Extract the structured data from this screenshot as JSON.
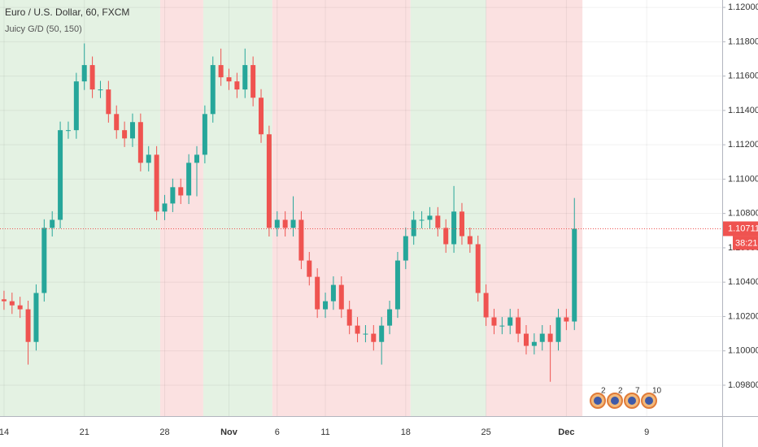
{
  "chart_data": {
    "type": "candlestick",
    "title": "Euro / U.S. Dollar, 60, FXCM",
    "subtitle": "Juicy G/D (50, 150)",
    "up_color": "#26a69a",
    "down_color": "#ef5350",
    "xlim": [
      -0.25,
      44.7
    ],
    "ylim": [
      1.0962,
      1.12043
    ],
    "xticks": [
      {
        "value": 0,
        "label": "14"
      },
      {
        "value": 5,
        "label": "21"
      },
      {
        "value": 10,
        "label": "28"
      },
      {
        "value": 14,
        "label": "Nov"
      },
      {
        "value": 17,
        "label": "6"
      },
      {
        "value": 20,
        "label": "11"
      },
      {
        "value": 25,
        "label": "18"
      },
      {
        "value": 30,
        "label": "25"
      },
      {
        "value": 35,
        "label": "Dec"
      },
      {
        "value": 40,
        "label": "9"
      }
    ],
    "yticks": [
      {
        "value": 1.098,
        "label": "1.09800"
      },
      {
        "value": 1.1,
        "label": "1.10000"
      },
      {
        "value": 1.102,
        "label": "1.10200"
      },
      {
        "value": 1.104,
        "label": "1.10400"
      },
      {
        "value": 1.106,
        "label": "1.10600"
      },
      {
        "value": 1.108,
        "label": "1.10800"
      },
      {
        "value": 1.11,
        "label": "1.11000"
      },
      {
        "value": 1.112,
        "label": "1.11200"
      },
      {
        "value": 1.114,
        "label": "1.11400"
      },
      {
        "value": 1.116,
        "label": "1.11600"
      },
      {
        "value": 1.118,
        "label": "1.11800"
      },
      {
        "value": 1.12,
        "label": "1.12000"
      }
    ],
    "grid": true,
    "zones": [
      {
        "start": -0.25,
        "end": 9.72,
        "color": "#e4f2e3"
      },
      {
        "start": 9.72,
        "end": 12.4,
        "color": "#fbe1e1"
      },
      {
        "start": 12.4,
        "end": 16.7,
        "color": "#e4f2e3"
      },
      {
        "start": 16.7,
        "end": 25.3,
        "color": "#fbe1e1"
      },
      {
        "start": 25.3,
        "end": 30.0,
        "color": "#e4f2e3"
      },
      {
        "start": 30.0,
        "end": 36.0,
        "color": "#fbe1e1"
      }
    ],
    "x": [
      0,
      0.5,
      1,
      1.5,
      2,
      2.5,
      3,
      3.5,
      4,
      4.5,
      5,
      5.5,
      6,
      6.5,
      7,
      7.5,
      8,
      8.5,
      9,
      9.5,
      10,
      10.5,
      11,
      11.5,
      12,
      12.5,
      13,
      13.5,
      14,
      14.5,
      15,
      15.5,
      16,
      16.5,
      17,
      17.5,
      18,
      18.5,
      19,
      19.5,
      20,
      20.5,
      21,
      21.5,
      22,
      22.5,
      23,
      23.5,
      24,
      24.5,
      25,
      25.5,
      26,
      26.5,
      27,
      27.5,
      28,
      28.5,
      29,
      29.5,
      30,
      30.5,
      31,
      31.5,
      32,
      32.5,
      33,
      33.5,
      34,
      34.5,
      35,
      35.5
    ],
    "open": [
      1.103,
      1.10289,
      1.10265,
      1.10242,
      1.10052,
      1.10337,
      1.10716,
      1.10763,
      1.11285,
      1.11285,
      1.11569,
      1.11664,
      1.11522,
      1.11522,
      1.11379,
      1.11285,
      1.11237,
      1.11332,
      1.11095,
      1.11142,
      1.10811,
      1.10858,
      1.10953,
      1.10905,
      1.11095,
      1.11142,
      1.11379,
      1.11664,
      1.11593,
      1.11569,
      1.11522,
      1.11664,
      1.11474,
      1.11261,
      1.10716,
      1.10763,
      1.10716,
      1.10763,
      1.10526,
      1.10431,
      1.10242,
      1.10289,
      1.10384,
      1.10242,
      1.10147,
      1.101,
      1.101,
      1.10052,
      1.10147,
      1.10242,
      1.10526,
      1.10668,
      1.10763,
      1.10763,
      1.10787,
      1.10716,
      1.10621,
      1.10811,
      1.10668,
      1.10621,
      1.10337,
      1.10195,
      1.10147,
      1.10147,
      1.10195,
      1.101,
      1.10029,
      1.10052,
      1.101,
      1.10052,
      1.10195,
      1.10171
    ],
    "high": [
      1.1035,
      1.10339,
      1.10315,
      1.10292,
      1.10387,
      1.10766,
      1.10813,
      1.11335,
      1.11335,
      1.11619,
      1.1179,
      1.11714,
      1.11572,
      1.11572,
      1.11429,
      1.11335,
      1.11382,
      1.11382,
      1.11192,
      1.11192,
      1.10908,
      1.11003,
      1.11003,
      1.11145,
      1.11192,
      1.11429,
      1.11714,
      1.1176,
      1.11643,
      1.11619,
      1.1176,
      1.11714,
      1.11524,
      1.11311,
      1.10813,
      1.10813,
      1.109,
      1.10813,
      1.10576,
      1.10481,
      1.10339,
      1.10434,
      1.10434,
      1.10292,
      1.10197,
      1.1015,
      1.1015,
      1.10197,
      1.10292,
      1.10576,
      1.10718,
      1.10813,
      1.10813,
      1.10837,
      1.10837,
      1.10766,
      1.1096,
      1.10861,
      1.10718,
      1.10671,
      1.10387,
      1.10245,
      1.10197,
      1.10245,
      1.10245,
      1.1015,
      1.10102,
      1.1015,
      1.1015,
      1.10245,
      1.10245,
      1.1089
    ],
    "low": [
      1.10239,
      1.10215,
      1.10192,
      1.0992,
      1.10002,
      1.10287,
      1.10666,
      1.10713,
      1.11235,
      1.11235,
      1.11519,
      1.11472,
      1.11472,
      1.11329,
      1.11235,
      1.11187,
      1.11187,
      1.11045,
      1.11045,
      1.10761,
      1.10761,
      1.10808,
      1.10855,
      1.10855,
      1.109,
      1.11092,
      1.11329,
      1.11543,
      1.11519,
      1.11472,
      1.11472,
      1.11424,
      1.11211,
      1.10666,
      1.10666,
      1.10666,
      1.10666,
      1.10476,
      1.10381,
      1.10192,
      1.10192,
      1.10239,
      1.10192,
      1.10097,
      1.1005,
      1.1005,
      1.10002,
      1.0992,
      1.10097,
      1.10192,
      1.10476,
      1.10618,
      1.10713,
      1.10713,
      1.10666,
      1.10571,
      1.10571,
      1.10618,
      1.10571,
      1.10287,
      1.10145,
      1.10097,
      1.10097,
      1.10097,
      1.1005,
      1.09979,
      1.09979,
      1.10002,
      1.0982,
      1.10002,
      1.10121,
      1.10121
    ],
    "close": [
      1.10289,
      1.10265,
      1.10242,
      1.10052,
      1.10337,
      1.10716,
      1.10763,
      1.11285,
      1.11285,
      1.11569,
      1.11664,
      1.11522,
      1.11522,
      1.11379,
      1.11285,
      1.11237,
      1.11332,
      1.11095,
      1.11142,
      1.10811,
      1.10858,
      1.10953,
      1.10905,
      1.11095,
      1.11142,
      1.11379,
      1.11664,
      1.11593,
      1.11569,
      1.11522,
      1.11664,
      1.11474,
      1.11261,
      1.10716,
      1.10763,
      1.10716,
      1.10763,
      1.10526,
      1.10431,
      1.10242,
      1.10289,
      1.10384,
      1.10242,
      1.10147,
      1.101,
      1.101,
      1.10052,
      1.10147,
      1.10242,
      1.10526,
      1.10668,
      1.10763,
      1.10763,
      1.10787,
      1.10716,
      1.10621,
      1.10811,
      1.10668,
      1.10621,
      1.10337,
      1.10195,
      1.10147,
      1.10147,
      1.10195,
      1.101,
      1.10029,
      1.10052,
      1.101,
      1.10052,
      1.10195,
      1.10171,
      1.10711
    ],
    "last_price": {
      "value": 1.10711,
      "label": "1.10711",
      "countdown": "38:21",
      "color": "#ef5350"
    },
    "events": [
      "2",
      "2",
      "7",
      "10"
    ]
  }
}
